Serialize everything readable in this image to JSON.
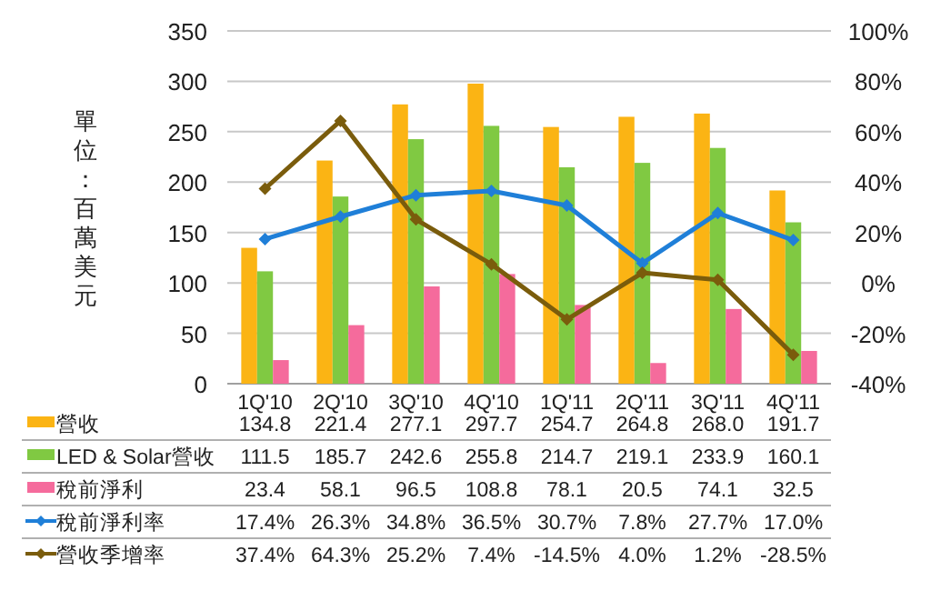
{
  "chart_data": {
    "type": "bar",
    "categories": [
      "1Q'10",
      "2Q'10",
      "3Q'10",
      "4Q'10",
      "1Q'11",
      "2Q'11",
      "3Q'11",
      "4Q'11"
    ],
    "ylabel": "單位：百萬美元",
    "ylim": [
      0,
      350
    ],
    "yticks": [
      0,
      50,
      100,
      150,
      200,
      250,
      300,
      350
    ],
    "y2lim": [
      -40,
      100
    ],
    "y2ticks": [
      {
        "value": -40,
        "label": "-40%"
      },
      {
        "value": -20,
        "label": "-20%"
      },
      {
        "value": 0,
        "label": "0%"
      },
      {
        "value": 20,
        "label": "20%"
      },
      {
        "value": 40,
        "label": "40%"
      },
      {
        "value": 60,
        "label": "60%"
      },
      {
        "value": 80,
        "label": "80%"
      },
      {
        "value": 100,
        "label": "100%"
      }
    ],
    "grid": "y",
    "legend": "bottom",
    "marker": "diamond",
    "series": [
      {
        "name": "營收",
        "color": "#fbb414",
        "values": [
          134.8,
          221.4,
          277.1,
          297.7,
          254.7,
          264.8,
          268.0,
          191.7
        ],
        "value_labels": [
          "134.8",
          "221.4",
          "277.1",
          "297.7",
          "254.7",
          "264.8",
          "268.0",
          "191.7"
        ]
      },
      {
        "name": "LED & Solar營收",
        "color": "#80c942",
        "values": [
          111.5,
          185.7,
          242.6,
          255.8,
          214.7,
          219.1,
          233.9,
          160.1
        ],
        "value_labels": [
          "111.5",
          "185.7",
          "242.6",
          "255.8",
          "214.7",
          "219.1",
          "233.9",
          "160.1"
        ]
      },
      {
        "name": "稅前淨利",
        "color": "#f56b9c",
        "values": [
          23.4,
          58.1,
          96.5,
          108.8,
          78.1,
          20.5,
          74.1,
          32.5
        ],
        "value_labels": [
          "23.4",
          "58.1",
          "96.5",
          "108.8",
          "78.1",
          "20.5",
          "74.1",
          "32.5"
        ]
      },
      {
        "name": "稅前淨利率",
        "type": "line",
        "axis": "y2",
        "color": "#1f7fd8",
        "values": [
          17.4,
          26.3,
          34.8,
          36.5,
          30.7,
          7.8,
          27.7,
          17.0
        ],
        "value_labels": [
          "17.4%",
          "26.3%",
          "34.8%",
          "36.5%",
          "30.7%",
          "7.8%",
          "27.7%",
          "17.0%"
        ]
      },
      {
        "name": "營收季增率",
        "type": "line",
        "axis": "y2",
        "color": "#7a5c0c",
        "values": [
          37.4,
          64.3,
          25.2,
          7.4,
          -14.5,
          4.0,
          1.2,
          -28.5
        ],
        "value_labels": [
          "37.4%",
          "64.3%",
          "25.2%",
          "7.4%",
          "-14.5%",
          "4.0%",
          "1.2%",
          "-28.5%"
        ]
      }
    ]
  }
}
